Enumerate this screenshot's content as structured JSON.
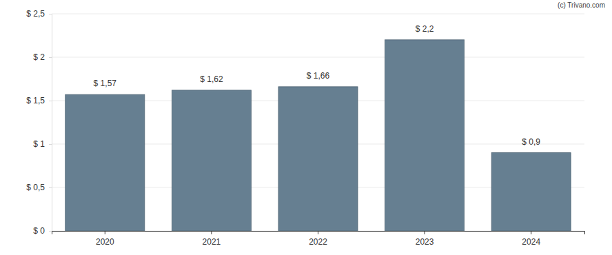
{
  "chart_data": {
    "type": "bar",
    "categories": [
      "2020",
      "2021",
      "2022",
      "2023",
      "2024"
    ],
    "values": [
      1.57,
      1.62,
      1.66,
      2.2,
      0.9
    ],
    "value_labels": [
      "$ 1,57",
      "$ 1,62",
      "$ 1,66",
      "$ 2,2",
      "$ 0,9"
    ],
    "data_labels": true,
    "color": "#667f91",
    "ylim": [
      0,
      2.5
    ],
    "yticks": [
      {
        "value": 0,
        "label": "$ 0"
      },
      {
        "value": 0.5,
        "label": "$ 0,5"
      },
      {
        "value": 1,
        "label": "$ 1"
      },
      {
        "value": 1.5,
        "label": "$ 1,5"
      },
      {
        "value": 2,
        "label": "$ 2"
      },
      {
        "value": 2.5,
        "label": "$ 2,5"
      }
    ],
    "grid": true,
    "annotations": [
      "(c) Trivano.com"
    ]
  }
}
